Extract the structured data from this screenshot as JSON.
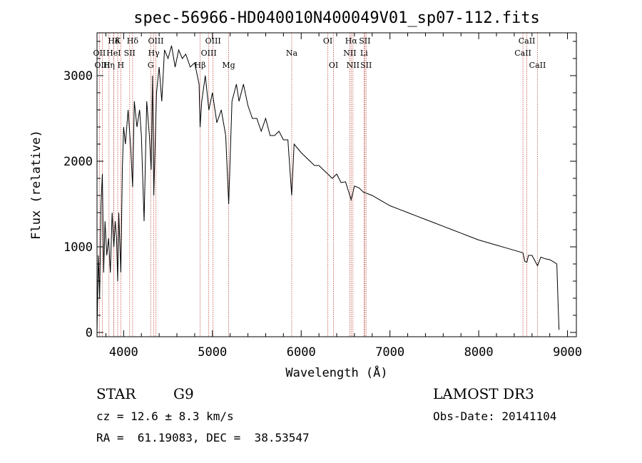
{
  "chart_data": {
    "type": "line",
    "title": "spec-56966-HD040010N400049V01_sp07-112.fits",
    "xlabel": "Wavelength (Å)",
    "ylabel": "Flux (relative)",
    "xlim": [
      3700,
      9100
    ],
    "ylim": [
      -50,
      3500
    ],
    "xticks": [
      4000,
      5000,
      6000,
      7000,
      8000,
      9000
    ],
    "yticks": [
      0,
      1000,
      2000,
      3000
    ],
    "grid": false,
    "series": [
      {
        "x": [
          3700,
          3715,
          3730,
          3745,
          3760,
          3775,
          3790,
          3810,
          3830,
          3850,
          3870,
          3890,
          3905,
          3920,
          3933,
          3945,
          3968,
          3985,
          4000,
          4020,
          4050,
          4080,
          4101,
          4120,
          4150,
          4180,
          4200,
          4230,
          4260,
          4290,
          4310,
          4325,
          4340,
          4370,
          4400,
          4430,
          4460,
          4500,
          4540,
          4580,
          4620,
          4660,
          4700,
          4750,
          4800,
          4850,
          4861,
          4880,
          4920,
          4960,
          5000,
          5050,
          5100,
          5150,
          5183,
          5220,
          5270,
          5300,
          5350,
          5400,
          5450,
          5500,
          5550,
          5600,
          5650,
          5700,
          5750,
          5800,
          5850,
          5893,
          5920,
          5960,
          6000,
          6050,
          6100,
          6150,
          6200,
          6250,
          6300,
          6350,
          6400,
          6450,
          6500,
          6563,
          6600,
          6650,
          6700,
          6800,
          6900,
          7000,
          7100,
          7200,
          7300,
          7400,
          7500,
          7600,
          7700,
          7800,
          7900,
          8000,
          8100,
          8200,
          8300,
          8400,
          8498,
          8520,
          8542,
          8560,
          8600,
          8662,
          8700,
          8750,
          8800,
          8850,
          8880,
          8895,
          8905
        ],
        "y": [
          0,
          900,
          400,
          1500,
          1850,
          700,
          1300,
          900,
          1100,
          700,
          1400,
          1000,
          1300,
          1100,
          600,
          1400,
          700,
          1900,
          2400,
          2200,
          2600,
          2150,
          1700,
          2700,
          2400,
          2600,
          2300,
          1300,
          2700,
          2300,
          1900,
          3000,
          1600,
          2800,
          3100,
          2700,
          3300,
          3200,
          3350,
          3100,
          3300,
          3200,
          3250,
          3100,
          3150,
          2900,
          2400,
          2700,
          3000,
          2600,
          2800,
          2450,
          2600,
          2300,
          1500,
          2700,
          2900,
          2700,
          2900,
          2650,
          2500,
          2500,
          2350,
          2500,
          2300,
          2300,
          2350,
          2250,
          2250,
          1600,
          2200,
          2150,
          2100,
          2050,
          2000,
          1950,
          1950,
          1900,
          1850,
          1800,
          1850,
          1750,
          1760,
          1550,
          1710,
          1690,
          1640,
          1600,
          1540,
          1480,
          1440,
          1400,
          1360,
          1320,
          1280,
          1240,
          1200,
          1160,
          1120,
          1080,
          1050,
          1020,
          990,
          960,
          930,
          830,
          820,
          900,
          900,
          780,
          880,
          860,
          850,
          820,
          800,
          300,
          30
        ]
      }
    ],
    "lines": [
      {
        "name": "Hδ",
        "x": 3889,
        "row": 1
      },
      {
        "name": "OII",
        "x": 3727,
        "row": 2
      },
      {
        "name": "OIII",
        "x": 3760,
        "row": 3
      },
      {
        "name": "K",
        "x": 3933,
        "row": 1
      },
      {
        "name": "HeI",
        "x": 3888,
        "row": 2
      },
      {
        "name": "Hη",
        "x": 3835,
        "row": 3
      },
      {
        "name": "SII",
        "x": 4068,
        "row": 2
      },
      {
        "name": "H",
        "x": 3968,
        "row": 3
      },
      {
        "name": "Hδ",
        "x": 4101,
        "row": 1
      },
      {
        "name": "OIII",
        "x": 4363,
        "row": 1
      },
      {
        "name": "Hγ",
        "x": 4340,
        "row": 2
      },
      {
        "name": "G",
        "x": 4305,
        "row": 3
      },
      {
        "name": "OIII",
        "x": 5007,
        "row": 1
      },
      {
        "name": "OIII",
        "x": 4959,
        "row": 2
      },
      {
        "name": "Hβ",
        "x": 4861,
        "row": 3
      },
      {
        "name": "Mg",
        "x": 5183,
        "row": 3
      },
      {
        "name": "Na",
        "x": 5893,
        "row": 2
      },
      {
        "name": "OI",
        "x": 6300,
        "row": 1
      },
      {
        "name": "OI",
        "x": 6364,
        "row": 3
      },
      {
        "name": "Hα",
        "x": 6563,
        "row": 1
      },
      {
        "name": "NII",
        "x": 6548,
        "row": 2
      },
      {
        "name": "NII",
        "x": 6583,
        "row": 3
      },
      {
        "name": "SII",
        "x": 6716,
        "row": 1
      },
      {
        "name": "Li",
        "x": 6708,
        "row": 2
      },
      {
        "name": "SII",
        "x": 6731,
        "row": 3
      },
      {
        "name": "CaII",
        "x": 8542,
        "row": 1
      },
      {
        "name": "CaII",
        "x": 8498,
        "row": 2
      },
      {
        "name": "CaII",
        "x": 8662,
        "row": 3
      }
    ]
  },
  "info": {
    "class_label": "STAR",
    "subclass": "G9",
    "survey": "LAMOST DR3",
    "cz": "cz = 12.6 ± 8.3 km/s",
    "obs_date": "Obs-Date: 20141104",
    "coords": "RA =  61.19083, DEC =  38.53547"
  }
}
